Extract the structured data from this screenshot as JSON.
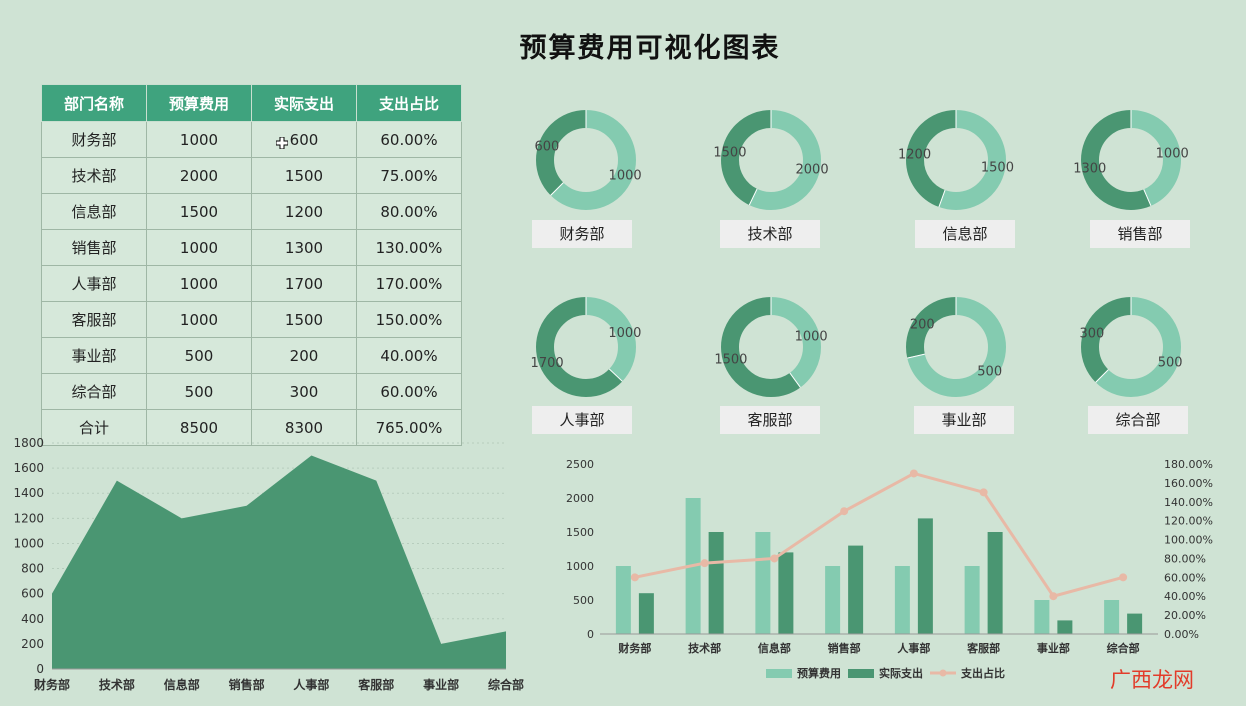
{
  "page": {
    "title": "预算费用可视化图表"
  },
  "table": {
    "headers": [
      "部门名称",
      "预算费用",
      "实际支出",
      "支出占比"
    ],
    "rows": [
      [
        "财务部",
        "1000",
        "600",
        "60.00%"
      ],
      [
        "技术部",
        "2000",
        "1500",
        "75.00%"
      ],
      [
        "信息部",
        "1500",
        "1200",
        "80.00%"
      ],
      [
        "销售部",
        "1000",
        "1300",
        "130.00%"
      ],
      [
        "人事部",
        "1000",
        "1700",
        "170.00%"
      ],
      [
        "客服部",
        "1000",
        "1500",
        "150.00%"
      ],
      [
        "事业部",
        "500",
        "200",
        "40.00%"
      ],
      [
        "综合部",
        "500",
        "300",
        "60.00%"
      ],
      [
        "合计",
        "8500",
        "8300",
        "765.00%"
      ]
    ]
  },
  "colors": {
    "budget": "#84cbb0",
    "actual": "#4a9672",
    "ratio": "#e8b9a6",
    "header": "#3fa37e"
  },
  "chart_data": [
    {
      "type": "pie",
      "subtype": "donut",
      "charts": [
        {
          "label": "财务部",
          "budget": 1000,
          "actual": 600
        },
        {
          "label": "技术部",
          "budget": 2000,
          "actual": 1500
        },
        {
          "label": "信息部",
          "budget": 1500,
          "actual": 1200
        },
        {
          "label": "销售部",
          "budget": 1000,
          "actual": 1300
        },
        {
          "label": "人事部",
          "budget": 1000,
          "actual": 1700
        },
        {
          "label": "客服部",
          "budget": 1000,
          "actual": 1500
        },
        {
          "label": "事业部",
          "budget": 500,
          "actual": 200
        },
        {
          "label": "综合部",
          "budget": 500,
          "actual": 300
        }
      ]
    },
    {
      "type": "area",
      "categories": [
        "财务部",
        "技术部",
        "信息部",
        "销售部",
        "人事部",
        "客服部",
        "事业部",
        "综合部"
      ],
      "values": [
        600,
        1500,
        1200,
        1300,
        1700,
        1500,
        200,
        300
      ],
      "ylim": [
        0,
        1800
      ],
      "yticks": [
        "0",
        "200",
        "400",
        "600",
        "800",
        "1000",
        "1200",
        "1400",
        "1600",
        "1800"
      ],
      "grid": true
    },
    {
      "type": "bar",
      "categories": [
        "财务部",
        "技术部",
        "信息部",
        "销售部",
        "人事部",
        "客服部",
        "事业部",
        "综合部"
      ],
      "series": [
        {
          "name": "预算费用",
          "values": [
            1000,
            2000,
            1500,
            1000,
            1000,
            1000,
            500,
            500
          ]
        },
        {
          "name": "实际支出",
          "values": [
            600,
            1500,
            1200,
            1300,
            1700,
            1500,
            200,
            300
          ]
        },
        {
          "name": "支出占比",
          "type": "line",
          "axis": "right",
          "values": [
            60,
            75,
            80,
            130,
            170,
            150,
            40,
            60
          ]
        }
      ],
      "ylim": [
        0,
        2500
      ],
      "yticks": [
        "0",
        "500",
        "1000",
        "1500",
        "2000",
        "2500"
      ],
      "y2lim": [
        0,
        180
      ],
      "y2ticks": [
        "0.00%",
        "20.00%",
        "40.00%",
        "60.00%",
        "80.00%",
        "100.00%",
        "120.00%",
        "140.00%",
        "160.00%",
        "180.00%"
      ],
      "legend": "bottom"
    }
  ],
  "watermark": "广西龙网"
}
